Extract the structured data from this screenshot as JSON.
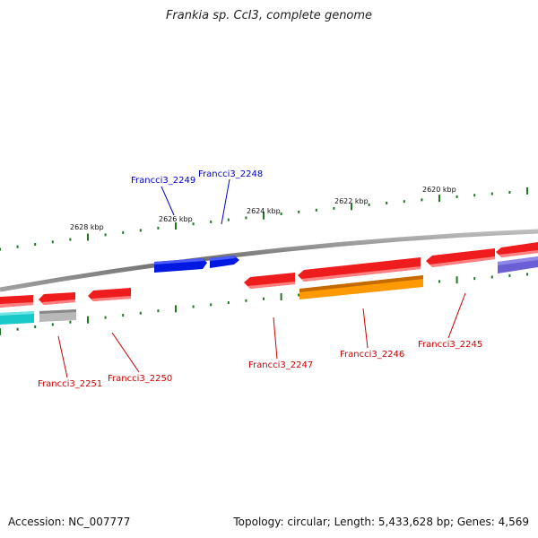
{
  "title": "Frankia sp. CcI3, complete genome",
  "footer": {
    "accession": "Accession: NC_007777",
    "summary": "Topology: circular; Length: 5,433,628 bp; Genes: 4,569"
  },
  "scale": {
    "ticks": [
      "2628 kbp",
      "2626 kbp",
      "2624 kbp",
      "2622 kbp",
      "2620 kbp"
    ]
  },
  "genes": [
    {
      "id": "g2251",
      "label": "Francci3_2251",
      "strand": "reverse",
      "color": "#ee1c1c",
      "label_color": "#cc0000"
    },
    {
      "id": "g2250",
      "label": "Francci3_2250",
      "strand": "reverse",
      "color": "#ee1c1c",
      "label_color": "#cc0000"
    },
    {
      "id": "g2249",
      "label": "Francci3_2249",
      "strand": "forward",
      "color": "#0018e0",
      "label_color": "#0000cc"
    },
    {
      "id": "g2248",
      "label": "Francci3_2248",
      "strand": "forward",
      "color": "#0018e0",
      "label_color": "#0000cc"
    },
    {
      "id": "g2247",
      "label": "Francci3_2247",
      "strand": "reverse",
      "color": "#ee1c1c",
      "label_color": "#cc0000"
    },
    {
      "id": "g2246",
      "label": "Francci3_2246",
      "strand": "reverse",
      "color": "#ee1c1c",
      "label_color": "#cc0000"
    },
    {
      "id": "g2245",
      "label": "Francci3_2245",
      "strand": "reverse",
      "color": "#ee1c1c",
      "label_color": "#cc0000"
    }
  ],
  "colors": {
    "backbone": "#8a8a8a",
    "tick": "#1f7a1f",
    "reverse_feature": "#ee1c1c",
    "forward_feature": "#0018e0",
    "cyan_feature": "#19c8c8",
    "grey_feature": "#b8b8b8",
    "orange_feature": "#ff9900",
    "purple_feature": "#6b5fd6"
  }
}
